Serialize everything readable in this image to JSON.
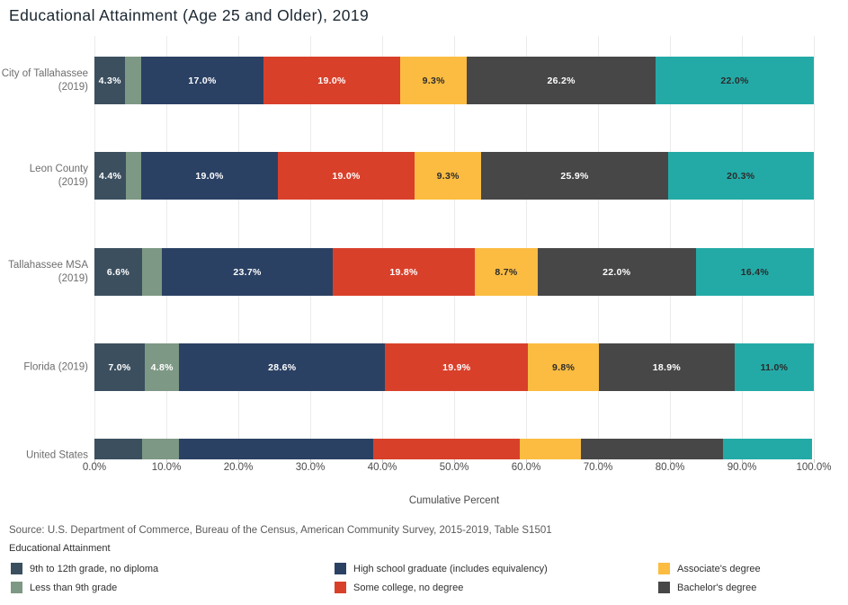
{
  "title": "Educational Attainment (Age 25 and Older), 2019",
  "chart_data": {
    "type": "bar",
    "variant": "horizontal-stacked",
    "title": "Educational Attainment (Age 25 and Older), 2019",
    "xlabel": "Cumulative Percent",
    "xlim": [
      0,
      100
    ],
    "grid": true,
    "x_tick_labels": [
      "0.0%",
      "10.0%",
      "20.0%",
      "30.0%",
      "40.0%",
      "50.0%",
      "60.0%",
      "70.0%",
      "80.0%",
      "90.0%",
      "100.0%"
    ],
    "segment_names": [
      "9th to 12th grade, no diploma",
      "Less than 9th grade",
      "High school graduate (includes equivalency)",
      "Some college, no degree",
      "Associate's degree",
      "Bachelor's degree",
      ""
    ],
    "segment_colors": [
      "#3b4f5f",
      "#7d9884",
      "#2b4164",
      "#d9402a",
      "#fbbc41",
      "#474747",
      "#23aaa7"
    ],
    "segment_label_colors": [
      "#ffffff",
      "#ffffff",
      "#ffffff",
      "#ffffff",
      "#2b2b2b",
      "#ffffff",
      "#2b2b2b"
    ],
    "rows": [
      {
        "category_lines": [
          "City of Tallahassee",
          "(2019)"
        ],
        "values": [
          4.3,
          2.2,
          17.0,
          19.0,
          9.3,
          26.2,
          22.0
        ],
        "labels": [
          "4.3%",
          "",
          "17.0%",
          "19.0%",
          "9.3%",
          "26.2%",
          "22.0%"
        ]
      },
      {
        "category_lines": [
          "Leon County",
          "(2019)"
        ],
        "values": [
          4.4,
          2.1,
          19.0,
          19.0,
          9.3,
          25.9,
          20.3
        ],
        "labels": [
          "4.4%",
          "",
          "19.0%",
          "19.0%",
          "9.3%",
          "25.9%",
          "20.3%"
        ]
      },
      {
        "category_lines": [
          "Tallahassee MSA",
          "(2019)"
        ],
        "values": [
          6.6,
          2.8,
          23.7,
          19.8,
          8.7,
          22.0,
          16.4
        ],
        "labels": [
          "6.6%",
          "",
          "23.7%",
          "19.8%",
          "8.7%",
          "22.0%",
          "16.4%"
        ]
      },
      {
        "category_lines": [
          "Florida (2019)"
        ],
        "values": [
          7.0,
          4.8,
          28.6,
          19.9,
          9.8,
          18.9,
          11.0
        ],
        "labels": [
          "7.0%",
          "4.8%",
          "28.6%",
          "19.9%",
          "9.8%",
          "18.9%",
          "11.0%"
        ]
      },
      {
        "category_lines": [
          "United States"
        ],
        "values": [
          6.6,
          5.1,
          27.0,
          20.4,
          8.5,
          19.8,
          12.4
        ],
        "labels": [
          "",
          "",
          "",
          "",
          "",
          "",
          ""
        ],
        "clipped": true
      }
    ]
  },
  "source": "Source: U.S. Department of Commerce, Bureau of the Census, American Community Survey, 2015-2019, Table S1501",
  "legend": {
    "title": "Educational Attainment",
    "items": [
      {
        "label": "9th to 12th grade, no diploma",
        "color": "#3b4f5f"
      },
      {
        "label": "Less than 9th grade",
        "color": "#7d9884"
      },
      {
        "label": "High school graduate (includes equivalency)",
        "color": "#2b4164"
      },
      {
        "label": "Some college, no degree",
        "color": "#d9402a"
      },
      {
        "label": "Associate's degree",
        "color": "#fbbc41"
      },
      {
        "label": "Bachelor's degree",
        "color": "#474747"
      }
    ]
  }
}
